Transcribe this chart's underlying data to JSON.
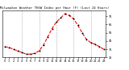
{
  "title": "Milwaukee Weather THSW Index per Hour (F) (Last 24 Hours)",
  "hours": [
    0,
    1,
    2,
    3,
    4,
    5,
    6,
    7,
    8,
    9,
    10,
    11,
    12,
    13,
    14,
    15,
    16,
    17,
    18,
    19,
    20,
    21,
    22,
    23
  ],
  "values": [
    38,
    37,
    35,
    33,
    31,
    29,
    29,
    30,
    33,
    40,
    50,
    60,
    68,
    73,
    78,
    76,
    72,
    64,
    55,
    47,
    43,
    41,
    38,
    35
  ],
  "line_color": "#ff0000",
  "bg_color": "#ffffff",
  "plot_bg_color": "#ffffff",
  "grid_color": "#888888",
  "text_color": "#000000",
  "ylim": [
    25,
    82
  ],
  "ytick_vals": [
    25,
    35,
    45,
    55,
    65,
    75
  ],
  "ytick_labels": [
    "25",
    "35",
    "45",
    "55",
    "65",
    "75"
  ],
  "vgrid_hours": [
    4,
    8,
    12,
    16,
    20
  ],
  "marker_size": 2.0,
  "line_width": 0.8,
  "title_fontsize": 2.8,
  "tick_fontsize": 2.5
}
